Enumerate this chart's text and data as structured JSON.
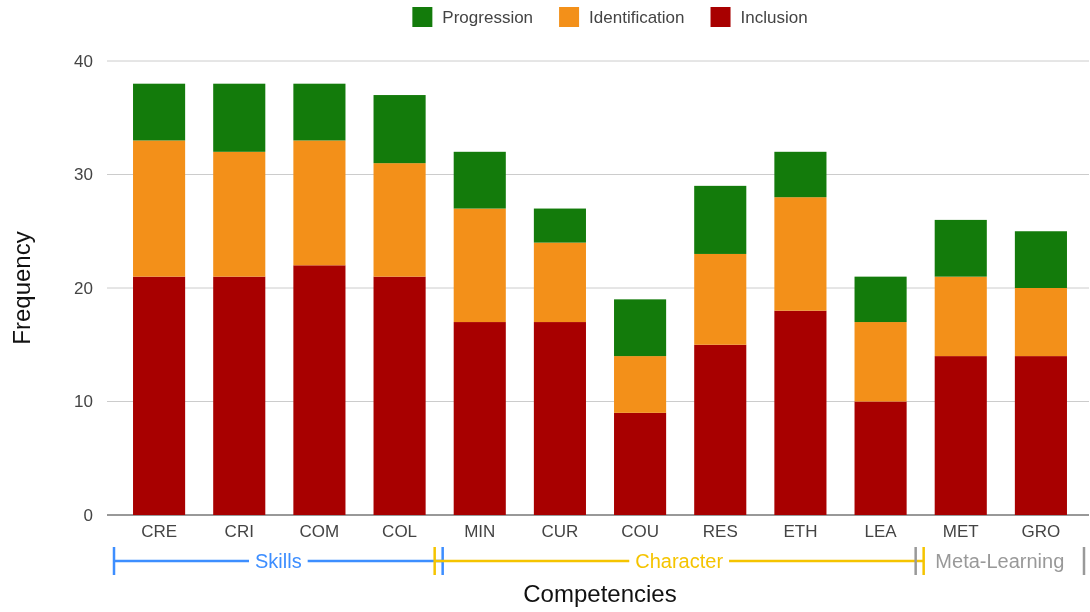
{
  "chart_data": {
    "type": "bar",
    "stacked": true,
    "xlabel": "Competencies",
    "ylabel": "Frequency",
    "categories": [
      "CRE",
      "CRI",
      "COM",
      "COL",
      "MIN",
      "CUR",
      "COU",
      "RES",
      "ETH",
      "LEA",
      "MET",
      "GRO"
    ],
    "series": [
      {
        "name": "Inclusion",
        "color": "#a80000",
        "values": [
          21,
          21,
          22,
          21,
          17,
          17,
          9,
          15,
          18,
          10,
          14,
          14
        ]
      },
      {
        "name": "Identification",
        "color": "#f39019",
        "values": [
          12,
          11,
          11,
          10,
          10,
          7,
          5,
          8,
          10,
          7,
          7,
          6
        ]
      },
      {
        "name": "Progression",
        "color": "#137b0b",
        "values": [
          5,
          6,
          5,
          6,
          5,
          3,
          5,
          6,
          4,
          4,
          5,
          5
        ]
      }
    ],
    "ylim": [
      0,
      40
    ],
    "yticks": [
      0,
      10,
      20,
      30,
      40
    ],
    "grid": "y",
    "legend": "top",
    "annotations": [
      "Skills",
      "Character",
      "Meta-Learning"
    ]
  }
}
